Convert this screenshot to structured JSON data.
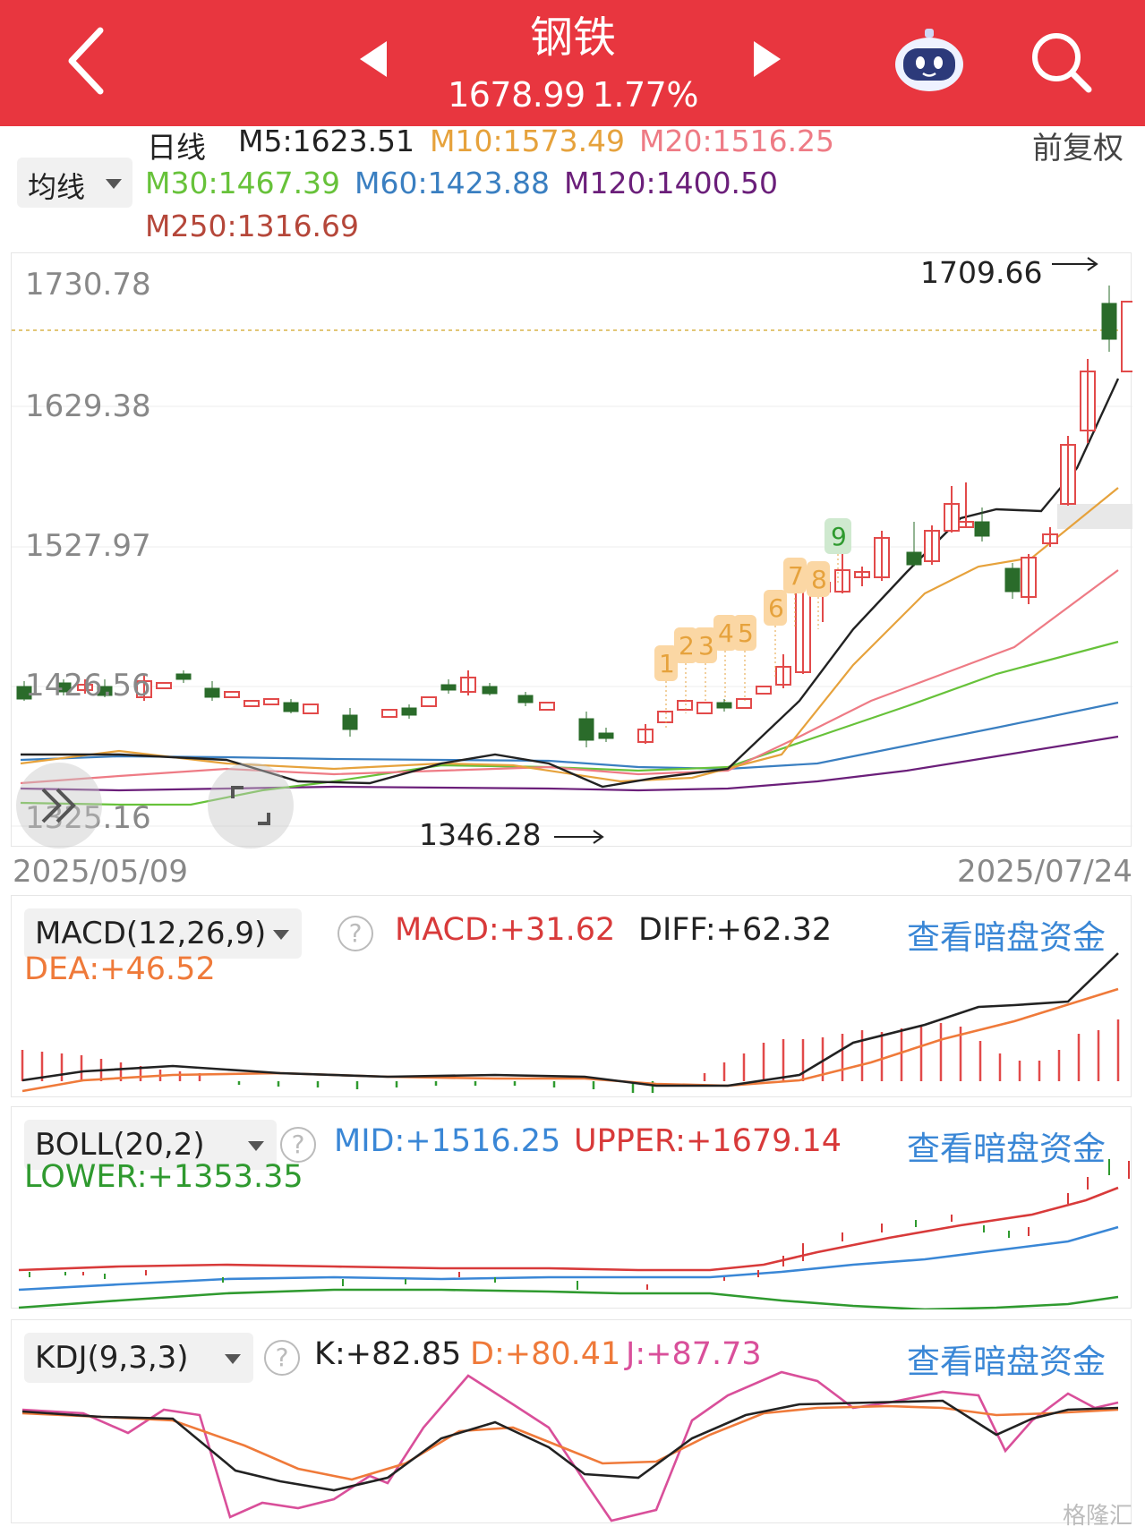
{
  "header": {
    "title": "钢铁",
    "price": "1678.99",
    "change_pct": "1.77%",
    "bg_color": "#e8363f"
  },
  "icons": {
    "back": "chevron-left-icon",
    "prev": "triangle-left-icon",
    "next": "triangle-right-icon",
    "assistant": "robot-icon",
    "search": "search-icon",
    "expand": "double-chevron-right-icon",
    "fullscreen": "fullscreen-corner-icon",
    "help": "question-circle-icon"
  },
  "legend": {
    "period": "日线",
    "ma_selector": "均线",
    "adjust": "前复权",
    "m5": "M5:1623.51",
    "m10": "M10:1573.49",
    "m20": "M20:1516.25",
    "m30": "M30:1467.39",
    "m60": "M60:1423.88",
    "m120": "M120:1400.50",
    "m250": "M250:1316.69",
    "colors": {
      "m5": "#222222",
      "m10": "#e6a23c",
      "m20": "#ee7b85",
      "m30": "#67c23a",
      "m60": "#3a7fc1",
      "m120": "#6b1f7a",
      "m250": "#b5473a"
    }
  },
  "main_chart": {
    "y_ticks": [
      "1730.78",
      "1629.38",
      "1527.97",
      "1426.56",
      "1325.16"
    ],
    "start_date": "2025/05/09",
    "end_date": "2025/07/24",
    "high_label": "1709.66",
    "low_label": "1346.28",
    "markers": [
      "1",
      "2",
      "3",
      "4",
      "5",
      "6",
      "7",
      "8",
      "9"
    ]
  },
  "macd": {
    "selector": "MACD(12,26,9)",
    "macd": "MACD:+31.62",
    "diff": "DIFF:+62.32",
    "dea": "DEA:+46.52",
    "link": "查看暗盘资金"
  },
  "boll": {
    "selector": "BOLL(20,2)",
    "mid": "MID:+1516.25",
    "upper": "UPPER:+1679.14",
    "lower": "LOWER:+1353.35",
    "link": "查看暗盘资金"
  },
  "kdj": {
    "selector": "KDJ(9,3,3)",
    "k": "K:+82.85",
    "d": "D:+80.41",
    "j": "J:+87.73",
    "link": "查看暗盘资金"
  },
  "watermark": "格隆汇"
}
